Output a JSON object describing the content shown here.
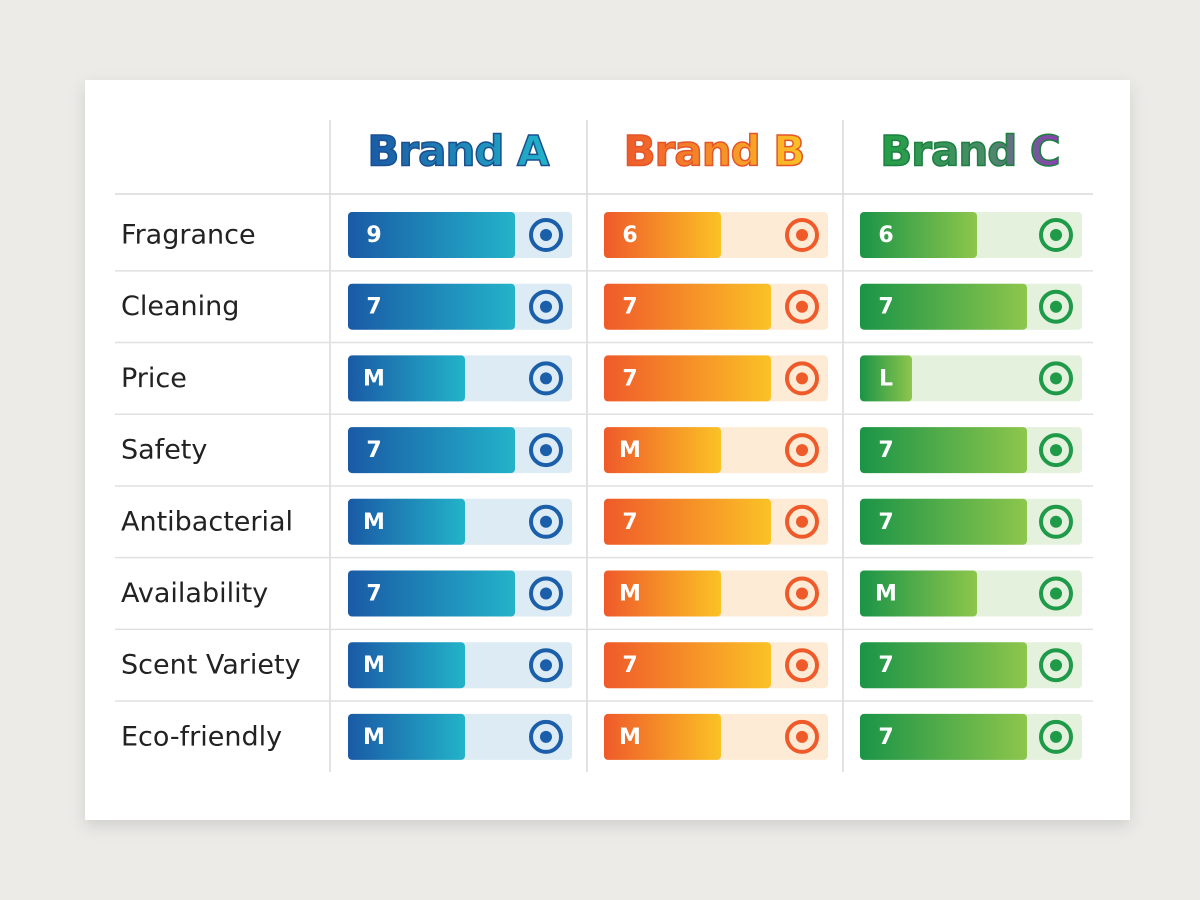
{
  "header": {
    "brands": [
      "Brand A",
      "Brand B",
      "Brand C"
    ]
  },
  "rows": [
    {
      "label": "Fragrance",
      "values": [
        "9",
        "6",
        "6"
      ]
    },
    {
      "label": "Cleaning",
      "values": [
        "7",
        "7",
        "7"
      ]
    },
    {
      "label": "Price",
      "values": [
        "M",
        "7",
        "L"
      ]
    },
    {
      "label": "Safety",
      "values": [
        "7",
        "M",
        "7"
      ]
    },
    {
      "label": "Antibacterial",
      "values": [
        "M",
        "7",
        "7"
      ]
    },
    {
      "label": "Availability",
      "values": [
        "7",
        "M",
        "M"
      ]
    },
    {
      "label": "Scent Variety",
      "values": [
        "M",
        "7",
        "7"
      ]
    },
    {
      "label": "Eco-friendly",
      "values": [
        "M",
        "M",
        "7"
      ]
    }
  ]
}
